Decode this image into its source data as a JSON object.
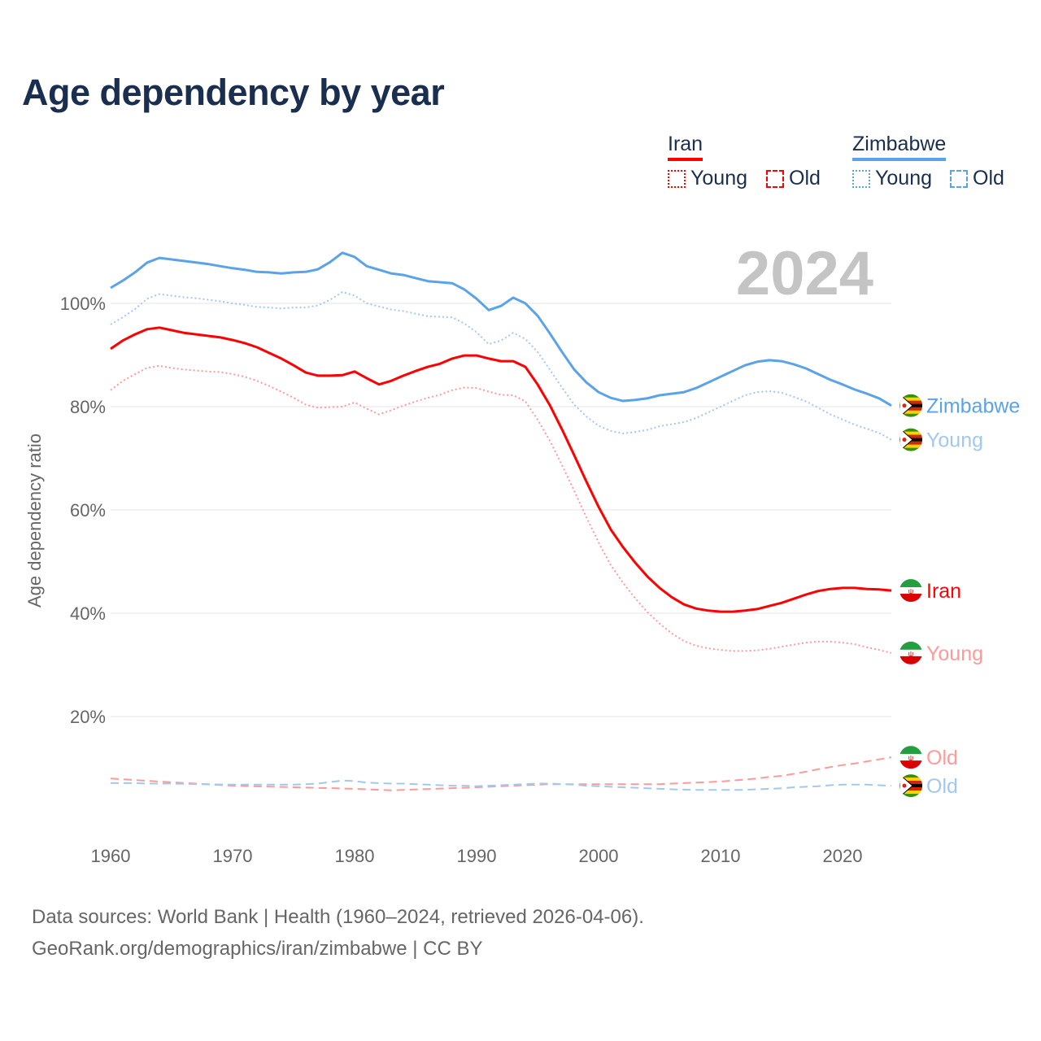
{
  "chart_data": {
    "type": "line",
    "title": "Age dependency by year",
    "ylabel": "Age dependency ratio",
    "xlabel": "",
    "year_label": "2024",
    "xlim": [
      1960,
      2024
    ],
    "ylim": [
      0,
      110
    ],
    "x_ticks": [
      "1960",
      "1970",
      "1980",
      "1990",
      "2000",
      "2010",
      "2020"
    ],
    "y_ticks": [
      "20%",
      "40%",
      "60%",
      "80%",
      "100%"
    ],
    "y_tick_values": [
      20,
      40,
      60,
      80,
      100
    ],
    "grid": true,
    "legend": {
      "placement": "top-right",
      "groups": [
        {
          "name": "Iran",
          "color": "#ff0000",
          "items": [
            "Young",
            "Old"
          ]
        },
        {
          "name": "Zimbabwe",
          "color": "#5ba3e8",
          "items": [
            "Young",
            "Old"
          ]
        }
      ]
    },
    "x_start": 1960,
    "series": [
      {
        "name": "Zimbabwe",
        "end_label": "Zimbabwe",
        "country": "zimbabwe",
        "style": "solid",
        "color": "#5ba3e8",
        "label_color": "#5ba3e8",
        "values": [
          103.0,
          104.4,
          106.0,
          107.9,
          108.8,
          108.5,
          108.2,
          107.9,
          107.6,
          107.2,
          106.8,
          106.5,
          106.1,
          106.0,
          105.8,
          106.0,
          106.1,
          106.6,
          108.0,
          109.8,
          109.0,
          107.2,
          106.5,
          105.8,
          105.5,
          104.9,
          104.3,
          104.1,
          103.9,
          102.7,
          100.9,
          98.7,
          99.5,
          101.1,
          100.0,
          97.6,
          94.2,
          90.6,
          87.2,
          84.7,
          82.8,
          81.7,
          81.1,
          81.3,
          81.6,
          82.2,
          82.5,
          82.8,
          83.6,
          84.7,
          85.8,
          86.9,
          88.0,
          88.7,
          89.0,
          88.8,
          88.2,
          87.4,
          86.3,
          85.2,
          84.3,
          83.3,
          82.5,
          81.6,
          80.2
        ]
      },
      {
        "name": "Zimbabwe Young",
        "end_label": "Young",
        "country": "zimbabwe",
        "style": "dotted",
        "color": "#a3c8f0",
        "label_color": "#a3c8f0",
        "values": [
          95.9,
          97.3,
          98.9,
          100.9,
          101.8,
          101.5,
          101.2,
          101.0,
          100.7,
          100.4,
          100.0,
          99.7,
          99.3,
          99.2,
          99.0,
          99.2,
          99.2,
          99.6,
          100.7,
          102.2,
          101.5,
          100.0,
          99.4,
          98.8,
          98.5,
          98.0,
          97.5,
          97.4,
          97.3,
          96.1,
          94.4,
          92.1,
          92.8,
          94.3,
          93.1,
          90.6,
          87.2,
          83.7,
          80.4,
          78.1,
          76.3,
          75.3,
          74.8,
          75.1,
          75.5,
          76.2,
          76.6,
          77.0,
          77.8,
          78.9,
          80.0,
          81.1,
          82.2,
          82.8,
          83.0,
          82.7,
          81.9,
          81.0,
          79.8,
          78.5,
          77.5,
          76.5,
          75.7,
          74.9,
          73.6
        ]
      },
      {
        "name": "Iran",
        "end_label": "Iran",
        "country": "iran",
        "style": "solid",
        "color": "#ff0000",
        "label_color": "#ff0000",
        "values": [
          91.2,
          92.8,
          94.0,
          95.0,
          95.3,
          94.8,
          94.3,
          94.0,
          93.7,
          93.4,
          92.9,
          92.3,
          91.5,
          90.4,
          89.3,
          88.0,
          86.6,
          86.0,
          86.0,
          86.1,
          86.8,
          85.5,
          84.3,
          85.0,
          86.0,
          86.9,
          87.7,
          88.3,
          89.3,
          89.9,
          89.9,
          89.3,
          88.8,
          88.8,
          87.7,
          84.3,
          80.3,
          75.6,
          70.6,
          65.5,
          60.6,
          56.2,
          52.8,
          49.8,
          47.1,
          44.9,
          43.1,
          41.7,
          40.9,
          40.5,
          40.3,
          40.3,
          40.5,
          40.8,
          41.4,
          42.0,
          42.8,
          43.6,
          44.3,
          44.7,
          44.9,
          44.9,
          44.7,
          44.6,
          44.4
        ]
      },
      {
        "name": "Iran Young",
        "end_label": "Young",
        "country": "iran",
        "style": "dotted",
        "color": "#ff9a9a",
        "label_color": "#ff9a9a",
        "values": [
          83.2,
          85.0,
          86.3,
          87.5,
          87.9,
          87.5,
          87.2,
          87.0,
          86.8,
          86.7,
          86.3,
          85.8,
          85.0,
          84.0,
          82.9,
          81.7,
          80.4,
          79.8,
          79.9,
          80.0,
          80.8,
          79.6,
          78.5,
          79.3,
          80.2,
          81.0,
          81.7,
          82.3,
          83.2,
          83.7,
          83.6,
          82.9,
          82.3,
          82.2,
          81.0,
          77.5,
          73.4,
          68.7,
          63.7,
          58.6,
          53.7,
          49.3,
          45.9,
          42.9,
          40.2,
          38.0,
          36.1,
          34.6,
          33.7,
          33.2,
          32.9,
          32.7,
          32.7,
          32.8,
          33.1,
          33.5,
          33.9,
          34.3,
          34.5,
          34.5,
          34.3,
          34.0,
          33.4,
          32.9,
          32.3
        ]
      },
      {
        "name": "Iran Old",
        "end_label": "Old",
        "country": "iran",
        "style": "dashed",
        "color": "#ff9a9a",
        "label_color": "#ff9a9a",
        "values": [
          8.0,
          7.85,
          7.7,
          7.55,
          7.4,
          7.27,
          7.13,
          7.0,
          6.87,
          6.73,
          6.6,
          6.54,
          6.48,
          6.42,
          6.36,
          6.3,
          6.24,
          6.18,
          6.12,
          6.06,
          6.0,
          5.9,
          5.8,
          5.7,
          5.79,
          5.87,
          5.96,
          6.04,
          6.13,
          6.21,
          6.3,
          6.4,
          6.5,
          6.6,
          6.7,
          6.8,
          6.9,
          6.9,
          6.9,
          6.9,
          6.9,
          6.9,
          6.9,
          6.9,
          6.9,
          6.9,
          7.0,
          7.1,
          7.2,
          7.3,
          7.4,
          7.6,
          7.8,
          8.0,
          8.3,
          8.5,
          8.9,
          9.3,
          9.8,
          10.2,
          10.6,
          10.9,
          11.3,
          11.7,
          12.1
        ]
      },
      {
        "name": "Zimbabwe Old",
        "end_label": "Old",
        "country": "zimbabwe",
        "style": "dashed",
        "color": "#a3c8f0",
        "label_color": "#a3c8f0",
        "values": [
          7.1,
          7.1,
          7.1,
          7.0,
          7.0,
          7.0,
          6.96,
          6.92,
          6.88,
          6.84,
          6.8,
          6.8,
          6.8,
          6.8,
          6.8,
          6.8,
          6.9,
          7.0,
          7.3,
          7.6,
          7.5,
          7.2,
          7.1,
          7.0,
          7.0,
          6.9,
          6.8,
          6.7,
          6.6,
          6.6,
          6.5,
          6.6,
          6.7,
          6.8,
          6.9,
          7.0,
          7.0,
          6.9,
          6.8,
          6.6,
          6.5,
          6.4,
          6.3,
          6.2,
          6.1,
          6.0,
          5.9,
          5.85,
          5.8,
          5.8,
          5.8,
          5.8,
          5.8,
          5.9,
          6.0,
          6.1,
          6.3,
          6.4,
          6.5,
          6.7,
          6.8,
          6.8,
          6.8,
          6.7,
          6.6
        ]
      }
    ]
  },
  "footer": {
    "line1": "Data sources: World Bank | Health (1960–2024, retrieved 2026-04-06).",
    "line2": "GeoRank.org/demographics/iran/zimbabwe | CC BY"
  }
}
